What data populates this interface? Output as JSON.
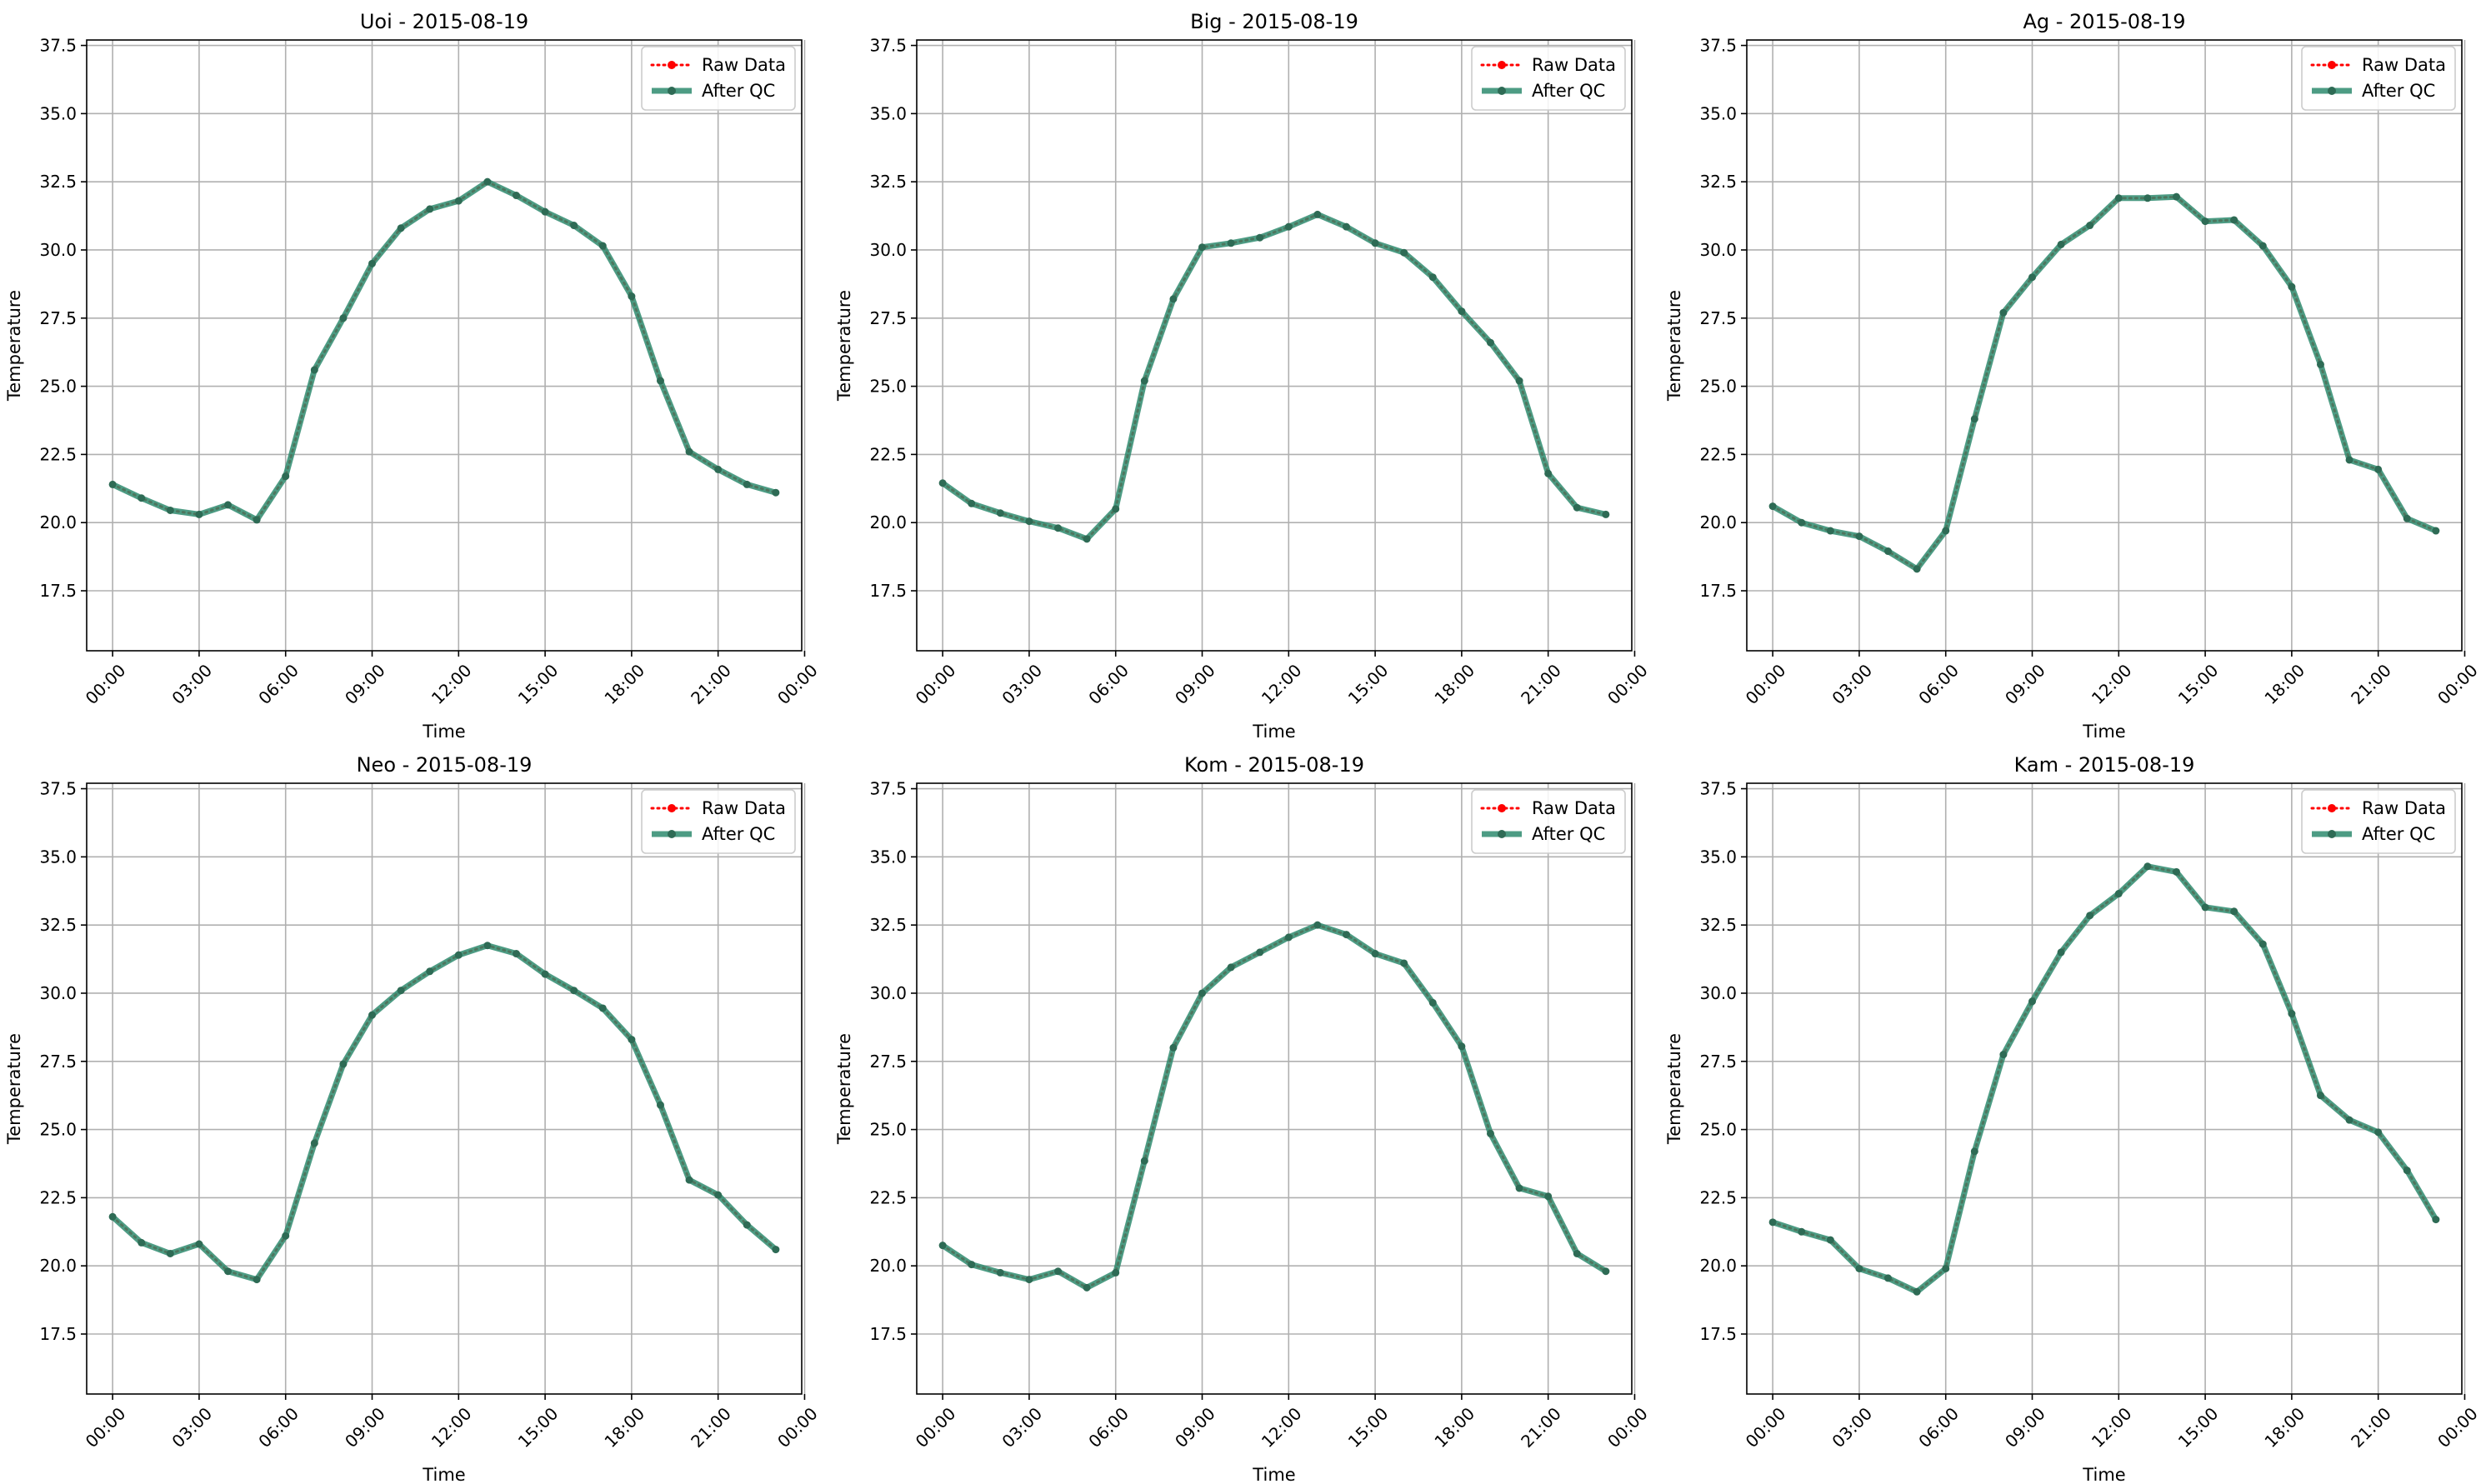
{
  "chart_data": [
    {
      "type": "line",
      "title": "Uoi - 2015-08-19",
      "xlabel": "Time",
      "ylabel": "Temperature",
      "ylim": [
        15.3,
        37.7
      ],
      "xlim": [
        -0.9,
        23.9
      ],
      "yticks": [
        17.5,
        20.0,
        22.5,
        25.0,
        27.5,
        30.0,
        32.5,
        35.0,
        37.5
      ],
      "xticks": [
        0,
        3,
        6,
        9,
        12,
        15,
        18,
        21,
        24
      ],
      "xtick_labels": [
        "00:00",
        "03:00",
        "06:00",
        "09:00",
        "12:00",
        "15:00",
        "18:00",
        "21:00",
        "00:00"
      ],
      "grid": true,
      "legend": "upper right",
      "x": [
        0,
        1,
        2,
        3,
        4,
        5,
        6,
        7,
        8,
        9,
        10,
        11,
        12,
        13,
        14,
        15,
        16,
        17,
        18,
        19,
        20,
        21,
        22,
        23
      ],
      "series": [
        {
          "name": "Raw Data",
          "color": "#ff0000",
          "style": "dotted",
          "values": [
            21.4,
            20.9,
            20.45,
            20.3,
            20.65,
            20.1,
            21.7,
            25.6,
            27.5,
            29.5,
            30.8,
            31.5,
            31.8,
            32.5,
            32.0,
            31.4,
            30.9,
            30.15,
            28.3,
            25.2,
            22.6,
            21.95,
            21.4,
            21.1
          ]
        },
        {
          "name": "After QC",
          "color": "#2e8b6f",
          "style": "solid",
          "values": [
            21.4,
            20.9,
            20.45,
            20.3,
            20.65,
            20.1,
            21.7,
            25.6,
            27.5,
            29.5,
            30.8,
            31.5,
            31.8,
            32.5,
            32.0,
            31.4,
            30.9,
            30.15,
            28.3,
            25.2,
            22.6,
            21.95,
            21.4,
            21.1
          ]
        }
      ]
    },
    {
      "type": "line",
      "title": "Big - 2015-08-19",
      "xlabel": "Time",
      "ylabel": "Temperature",
      "ylim": [
        15.3,
        37.7
      ],
      "xlim": [
        -0.9,
        23.9
      ],
      "yticks": [
        17.5,
        20.0,
        22.5,
        25.0,
        27.5,
        30.0,
        32.5,
        35.0,
        37.5
      ],
      "xticks": [
        0,
        3,
        6,
        9,
        12,
        15,
        18,
        21,
        24
      ],
      "xtick_labels": [
        "00:00",
        "03:00",
        "06:00",
        "09:00",
        "12:00",
        "15:00",
        "18:00",
        "21:00",
        "00:00"
      ],
      "grid": true,
      "legend": "upper right",
      "x": [
        0,
        1,
        2,
        3,
        4,
        5,
        6,
        7,
        8,
        9,
        10,
        11,
        12,
        13,
        14,
        15,
        16,
        17,
        18,
        19,
        20,
        21,
        22,
        23
      ],
      "series": [
        {
          "name": "Raw Data",
          "color": "#ff0000",
          "style": "dotted",
          "values": [
            21.45,
            20.7,
            20.35,
            20.05,
            19.8,
            19.4,
            20.5,
            25.2,
            28.2,
            30.1,
            30.25,
            30.45,
            30.85,
            31.3,
            30.85,
            30.25,
            29.9,
            29.0,
            27.75,
            26.6,
            25.2,
            21.8,
            20.55,
            20.3
          ]
        },
        {
          "name": "After QC",
          "color": "#2e8b6f",
          "style": "solid",
          "values": [
            21.45,
            20.7,
            20.35,
            20.05,
            19.8,
            19.4,
            20.5,
            25.2,
            28.2,
            30.1,
            30.25,
            30.45,
            30.85,
            31.3,
            30.85,
            30.25,
            29.9,
            29.0,
            27.75,
            26.6,
            25.2,
            21.8,
            20.55,
            20.3
          ]
        }
      ]
    },
    {
      "type": "line",
      "title": "Ag - 2015-08-19",
      "xlabel": "Time",
      "ylabel": "Temperature",
      "ylim": [
        15.3,
        37.7
      ],
      "xlim": [
        -0.9,
        23.9
      ],
      "yticks": [
        17.5,
        20.0,
        22.5,
        25.0,
        27.5,
        30.0,
        32.5,
        35.0,
        37.5
      ],
      "xticks": [
        0,
        3,
        6,
        9,
        12,
        15,
        18,
        21,
        24
      ],
      "xtick_labels": [
        "00:00",
        "03:00",
        "06:00",
        "09:00",
        "12:00",
        "15:00",
        "18:00",
        "21:00",
        "00:00"
      ],
      "grid": true,
      "legend": "upper right",
      "x": [
        0,
        1,
        2,
        3,
        4,
        5,
        6,
        7,
        8,
        9,
        10,
        11,
        12,
        13,
        14,
        15,
        16,
        17,
        18,
        19,
        20,
        21,
        22,
        23
      ],
      "series": [
        {
          "name": "Raw Data",
          "color": "#ff0000",
          "style": "dotted",
          "values": [
            20.6,
            20.0,
            19.7,
            19.5,
            18.95,
            18.3,
            19.7,
            23.8,
            27.7,
            29.0,
            30.2,
            30.9,
            31.9,
            31.9,
            31.95,
            31.05,
            31.1,
            30.15,
            28.65,
            25.8,
            22.3,
            21.95,
            20.15,
            19.7
          ]
        },
        {
          "name": "After QC",
          "color": "#2e8b6f",
          "style": "solid",
          "values": [
            20.6,
            20.0,
            19.7,
            19.5,
            18.95,
            18.3,
            19.7,
            23.8,
            27.7,
            29.0,
            30.2,
            30.9,
            31.9,
            31.9,
            31.95,
            31.05,
            31.1,
            30.15,
            28.65,
            25.8,
            22.3,
            21.95,
            20.15,
            19.7
          ]
        }
      ]
    },
    {
      "type": "line",
      "title": "Neo - 2015-08-19",
      "xlabel": "Time",
      "ylabel": "Temperature",
      "ylim": [
        15.3,
        37.7
      ],
      "xlim": [
        -0.9,
        23.9
      ],
      "yticks": [
        17.5,
        20.0,
        22.5,
        25.0,
        27.5,
        30.0,
        32.5,
        35.0,
        37.5
      ],
      "xticks": [
        0,
        3,
        6,
        9,
        12,
        15,
        18,
        21,
        24
      ],
      "xtick_labels": [
        "00:00",
        "03:00",
        "06:00",
        "09:00",
        "12:00",
        "15:00",
        "18:00",
        "21:00",
        "00:00"
      ],
      "grid": true,
      "legend": "upper right",
      "x": [
        0,
        1,
        2,
        3,
        4,
        5,
        6,
        7,
        8,
        9,
        10,
        11,
        12,
        13,
        14,
        15,
        16,
        17,
        18,
        19,
        20,
        21,
        22,
        23
      ],
      "series": [
        {
          "name": "Raw Data",
          "color": "#ff0000",
          "style": "dotted",
          "values": [
            21.8,
            20.85,
            20.45,
            20.8,
            19.8,
            19.5,
            21.1,
            24.5,
            27.4,
            29.2,
            30.1,
            30.8,
            31.4,
            31.75,
            31.45,
            30.7,
            30.1,
            29.45,
            28.3,
            25.9,
            23.15,
            22.6,
            21.5,
            20.6
          ]
        },
        {
          "name": "After QC",
          "color": "#2e8b6f",
          "style": "solid",
          "values": [
            21.8,
            20.85,
            20.45,
            20.8,
            19.8,
            19.5,
            21.1,
            24.5,
            27.4,
            29.2,
            30.1,
            30.8,
            31.4,
            31.75,
            31.45,
            30.7,
            30.1,
            29.45,
            28.3,
            25.9,
            23.15,
            22.6,
            21.5,
            20.6
          ]
        }
      ]
    },
    {
      "type": "line",
      "title": "Kom - 2015-08-19",
      "xlabel": "Time",
      "ylabel": "Temperature",
      "ylim": [
        15.3,
        37.7
      ],
      "xlim": [
        -0.9,
        23.9
      ],
      "yticks": [
        17.5,
        20.0,
        22.5,
        25.0,
        27.5,
        30.0,
        32.5,
        35.0,
        37.5
      ],
      "xticks": [
        0,
        3,
        6,
        9,
        12,
        15,
        18,
        21,
        24
      ],
      "xtick_labels": [
        "00:00",
        "03:00",
        "06:00",
        "09:00",
        "12:00",
        "15:00",
        "18:00",
        "21:00",
        "00:00"
      ],
      "grid": true,
      "legend": "upper right",
      "x": [
        0,
        1,
        2,
        3,
        4,
        5,
        6,
        7,
        8,
        9,
        10,
        11,
        12,
        13,
        14,
        15,
        16,
        17,
        18,
        19,
        20,
        21,
        22,
        23
      ],
      "series": [
        {
          "name": "Raw Data",
          "color": "#ff0000",
          "style": "dotted",
          "values": [
            20.75,
            20.05,
            19.75,
            19.5,
            19.8,
            19.2,
            19.75,
            23.85,
            28.0,
            30.0,
            30.95,
            31.5,
            32.05,
            32.5,
            32.15,
            31.45,
            31.1,
            29.65,
            28.05,
            24.85,
            22.85,
            22.55,
            20.45,
            19.8
          ]
        },
        {
          "name": "After QC",
          "color": "#2e8b6f",
          "style": "solid",
          "values": [
            20.75,
            20.05,
            19.75,
            19.5,
            19.8,
            19.2,
            19.75,
            23.85,
            28.0,
            30.0,
            30.95,
            31.5,
            32.05,
            32.5,
            32.15,
            31.45,
            31.1,
            29.65,
            28.05,
            24.85,
            22.85,
            22.55,
            20.45,
            19.8
          ]
        }
      ]
    },
    {
      "type": "line",
      "title": "Kam - 2015-08-19",
      "xlabel": "Time",
      "ylabel": "Temperature",
      "ylim": [
        15.3,
        37.7
      ],
      "xlim": [
        -0.9,
        23.9
      ],
      "yticks": [
        17.5,
        20.0,
        22.5,
        25.0,
        27.5,
        30.0,
        32.5,
        35.0,
        37.5
      ],
      "xticks": [
        0,
        3,
        6,
        9,
        12,
        15,
        18,
        21,
        24
      ],
      "xtick_labels": [
        "00:00",
        "03:00",
        "06:00",
        "09:00",
        "12:00",
        "15:00",
        "18:00",
        "21:00",
        "00:00"
      ],
      "grid": true,
      "legend": "upper right",
      "x": [
        0,
        1,
        2,
        3,
        4,
        5,
        6,
        7,
        8,
        9,
        10,
        11,
        12,
        13,
        14,
        15,
        16,
        17,
        18,
        19,
        20,
        21,
        22,
        23
      ],
      "series": [
        {
          "name": "Raw Data",
          "color": "#ff0000",
          "style": "dotted",
          "values": [
            21.6,
            21.25,
            20.95,
            19.9,
            19.55,
            19.05,
            19.9,
            24.2,
            27.75,
            29.7,
            31.5,
            32.85,
            33.65,
            34.65,
            34.45,
            33.15,
            33.0,
            31.8,
            29.25,
            26.25,
            25.35,
            24.9,
            23.5,
            21.7
          ]
        },
        {
          "name": "After QC",
          "color": "#2e8b6f",
          "style": "solid",
          "values": [
            21.6,
            21.25,
            20.95,
            19.9,
            19.55,
            19.05,
            19.9,
            24.2,
            27.75,
            29.7,
            31.5,
            32.85,
            33.65,
            34.65,
            34.45,
            33.15,
            33.0,
            31.8,
            29.25,
            26.25,
            25.35,
            24.9,
            23.5,
            21.7
          ]
        }
      ]
    }
  ]
}
